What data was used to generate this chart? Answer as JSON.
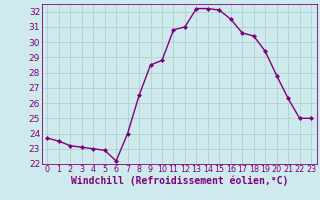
{
  "x": [
    0,
    1,
    2,
    3,
    4,
    5,
    6,
    7,
    8,
    9,
    10,
    11,
    12,
    13,
    14,
    15,
    16,
    17,
    18,
    19,
    20,
    21,
    22,
    23
  ],
  "y": [
    23.7,
    23.5,
    23.2,
    23.1,
    23.0,
    22.9,
    22.2,
    24.0,
    26.5,
    28.5,
    28.8,
    30.8,
    31.0,
    32.2,
    32.2,
    32.1,
    31.5,
    30.6,
    30.4,
    29.4,
    27.8,
    26.3,
    25.0,
    25.0
  ],
  "line_color": "#800080",
  "marker": "D",
  "marker_size": 2,
  "bg_color": "#ceeaed",
  "grid_color": "#aacccc",
  "xlabel": "Windchill (Refroidissement éolien,°C)",
  "xlim": [
    -0.5,
    23.5
  ],
  "ylim": [
    22,
    32.5
  ],
  "yticks": [
    22,
    23,
    24,
    25,
    26,
    27,
    28,
    29,
    30,
    31,
    32
  ],
  "xticks": [
    0,
    1,
    2,
    3,
    4,
    5,
    6,
    7,
    8,
    9,
    10,
    11,
    12,
    13,
    14,
    15,
    16,
    17,
    18,
    19,
    20,
    21,
    22,
    23
  ],
  "xlabel_color": "#800080",
  "tick_color": "#800080",
  "xlabel_fontsize": 7,
  "ytick_fontsize": 6.5,
  "xtick_fontsize": 5.8,
  "line_width": 1.0
}
